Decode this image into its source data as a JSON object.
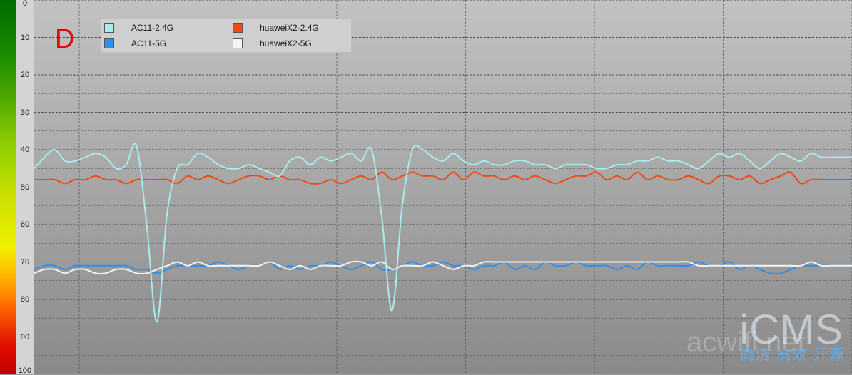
{
  "panel_label": "D",
  "watermark": {
    "brand": "iCMS",
    "tagline": "简洁 高效 开源",
    "faint_text": "acwifi.net"
  },
  "legend": [
    {
      "name": "AC11-2.4G",
      "color": "#a8ecec"
    },
    {
      "name": "AC11-5G",
      "color": "#2f8fea"
    },
    {
      "name": "huaweiX2-2.4G",
      "color": "#ef4a10"
    },
    {
      "name": "huaweiX2-5G",
      "color": "#f3f3f3"
    }
  ],
  "chart_data": {
    "type": "line",
    "ylim": [
      0,
      100
    ],
    "y_inverted": true,
    "yticks": [
      "0",
      "10",
      "20",
      "30",
      "40",
      "50",
      "60",
      "70",
      "80",
      "90",
      "100"
    ],
    "grid": true,
    "legend_position": "top-left",
    "x": [
      0,
      1,
      2,
      3,
      4,
      5,
      6,
      7,
      8,
      9,
      10,
      11,
      12,
      13,
      14,
      15,
      16,
      17,
      18,
      19,
      20,
      21,
      22,
      23,
      24,
      25,
      26,
      27,
      28,
      29,
      30,
      31,
      32,
      33,
      34,
      35,
      36,
      37,
      38,
      39,
      40,
      41,
      42,
      43,
      44,
      45,
      46,
      47,
      48,
      49,
      50,
      51,
      52,
      53,
      54,
      55,
      56,
      57,
      58,
      59,
      60,
      61,
      62,
      63,
      64,
      65,
      66,
      67,
      68,
      69,
      70,
      71,
      72,
      73,
      74,
      75,
      76,
      77,
      78,
      79,
      80
    ],
    "series": [
      {
        "name": "AC11-2.4G",
        "color": "#a8ecec",
        "values": [
          45,
          42,
          40,
          43,
          43,
          42,
          41,
          42,
          45,
          44,
          39,
          60,
          86,
          57,
          45,
          44,
          41,
          42,
          44,
          45,
          45,
          44,
          45,
          46,
          47,
          43,
          42,
          44,
          42,
          43,
          42,
          41,
          43,
          40,
          58,
          83,
          55,
          40,
          40,
          42,
          43,
          41,
          43,
          44,
          43,
          44,
          44,
          43,
          43,
          44,
          44,
          45,
          44,
          44,
          44,
          45,
          45,
          44,
          44,
          43,
          43,
          42,
          43,
          43,
          44,
          45,
          43,
          41,
          42,
          41,
          43,
          45,
          43,
          41,
          42,
          43,
          41,
          42,
          42,
          42,
          42
        ]
      },
      {
        "name": "AC11-5G",
        "color": "#2f8fea",
        "values": [
          72,
          71,
          71,
          72,
          71,
          71,
          71,
          71,
          71,
          71,
          72,
          72,
          73,
          72,
          71,
          71,
          71,
          71,
          70,
          71,
          72,
          71,
          71,
          70,
          72,
          71,
          72,
          71,
          71,
          70,
          71,
          72,
          71,
          70,
          72,
          72,
          71,
          70,
          71,
          71,
          70,
          71,
          71,
          72,
          71,
          71,
          70,
          72,
          71,
          72,
          70,
          71,
          71,
          70,
          71,
          71,
          71,
          72,
          71,
          72,
          70,
          71,
          71,
          71,
          71,
          70,
          71,
          71,
          70,
          72,
          71,
          72,
          73,
          73,
          72,
          71,
          71,
          71,
          71,
          71,
          71
        ]
      },
      {
        "name": "huaweiX2-2.4G",
        "color": "#ef4a10",
        "values": [
          48,
          48,
          48,
          49,
          48,
          48,
          47,
          48,
          48,
          49,
          48,
          48,
          48,
          48,
          49,
          47,
          48,
          47,
          48,
          49,
          48,
          47,
          47,
          48,
          47,
          48,
          48,
          49,
          49,
          48,
          49,
          48,
          47,
          48,
          46,
          48,
          47,
          46,
          47,
          47,
          48,
          46,
          48,
          46,
          47,
          47,
          48,
          47,
          48,
          47,
          48,
          49,
          48,
          47,
          47,
          46,
          48,
          47,
          48,
          46,
          48,
          47,
          48,
          48,
          47,
          48,
          49,
          47,
          47,
          48,
          47,
          49,
          48,
          47,
          46,
          49,
          48,
          48,
          48,
          48,
          48
        ]
      },
      {
        "name": "huaweiX2-5G",
        "color": "#f3f3f3",
        "values": [
          73,
          72,
          72,
          73,
          72,
          72,
          73,
          73,
          72,
          72,
          73,
          73,
          72,
          71,
          70,
          71,
          70,
          71,
          71,
          71,
          71,
          71,
          71,
          70,
          71,
          72,
          71,
          72,
          71,
          71,
          71,
          70,
          70,
          71,
          70,
          72,
          71,
          71,
          71,
          70,
          71,
          72,
          71,
          71,
          70,
          70,
          70,
          70,
          70,
          70,
          70,
          70,
          70,
          70,
          70,
          70,
          70,
          70,
          70,
          70,
          70,
          70,
          70,
          70,
          70,
          71,
          71,
          71,
          71,
          71,
          71,
          71,
          71,
          71,
          71,
          71,
          70,
          71,
          71,
          71,
          71
        ]
      }
    ]
  }
}
